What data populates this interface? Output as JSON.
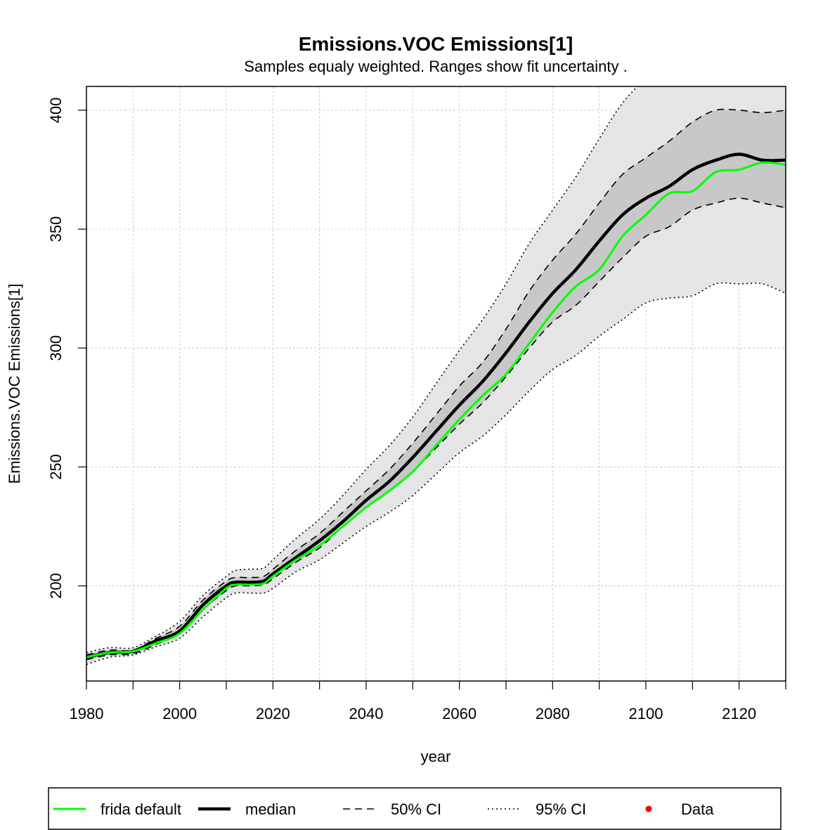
{
  "chart_data": {
    "type": "line",
    "title": "Emissions.VOC Emissions[1]",
    "subtitle": "Samples equaly weighted. Ranges show  fit uncertainty .",
    "xlabel": "year",
    "ylabel": "Emissions.VOC Emissions[1]",
    "xlim": [
      1980,
      2130
    ],
    "ylim": [
      160,
      410
    ],
    "x_ticks": [
      1980,
      2000,
      2020,
      2040,
      2060,
      2080,
      2100,
      2120
    ],
    "y_ticks": [
      200,
      250,
      300,
      350,
      400
    ],
    "grid": true,
    "legend": {
      "placement": "bottom",
      "entries": [
        "frida default",
        "median",
        "50% CI",
        "95% CI",
        "Data"
      ]
    },
    "colors": {
      "frida_default": "#00ff00",
      "median": "#000000",
      "ci50_fill": "#c8c8c8",
      "ci95_fill": "#e5e5e5",
      "data": "#ff0000"
    },
    "x": [
      1980,
      1985,
      1990,
      1995,
      2000,
      2005,
      2010,
      2012,
      2015,
      2018,
      2020,
      2025,
      2030,
      2035,
      2040,
      2045,
      2050,
      2055,
      2060,
      2065,
      2070,
      2075,
      2080,
      2085,
      2090,
      2095,
      2100,
      2105,
      2110,
      2115,
      2120,
      2125,
      2130
    ],
    "series": [
      {
        "name": "frida default",
        "values": [
          170,
          172,
          172.5,
          176,
          180,
          190,
          199,
          200.5,
          200.5,
          201,
          204,
          211,
          217,
          225,
          233,
          240,
          248,
          259,
          270,
          280,
          289,
          302,
          315,
          326,
          333,
          347,
          356,
          365,
          366,
          374,
          375,
          378,
          377
        ]
      },
      {
        "name": "median",
        "values": [
          170,
          172,
          172.5,
          177,
          181,
          192,
          200,
          201.5,
          201.5,
          202,
          205,
          212,
          219,
          227,
          236,
          244,
          254,
          265,
          276,
          286,
          298,
          311,
          323,
          333,
          345,
          356,
          363,
          368,
          375,
          379,
          381.5,
          379,
          379
        ]
      }
    ],
    "bands": {
      "ci50_lower": [
        169,
        171,
        171.5,
        175.5,
        180,
        190,
        198,
        200,
        200,
        200.5,
        203,
        210,
        216,
        225,
        233,
        240,
        248,
        258,
        268,
        277,
        288,
        300,
        311,
        318,
        328,
        338,
        347,
        351,
        358,
        361,
        363,
        361,
        359
      ],
      "ci50_upper": [
        171,
        173,
        173,
        178,
        183,
        194,
        202,
        203.5,
        203.5,
        204,
        207,
        215,
        222,
        231,
        240,
        249,
        260,
        272,
        284,
        294,
        308,
        324,
        337,
        348,
        361,
        373,
        380,
        387,
        395,
        400,
        400,
        399,
        400
      ],
      "ci95_lower": [
        167,
        170,
        171,
        174.5,
        178,
        187,
        195,
        197,
        197,
        197,
        199,
        206,
        211,
        218,
        225,
        231,
        238,
        247,
        256,
        263,
        272,
        282,
        291,
        297,
        305,
        312,
        319,
        321,
        322,
        327,
        327,
        327,
        323
      ],
      "ci95_upper": [
        172,
        174,
        174,
        179,
        185,
        196,
        204,
        206.5,
        207,
        207.5,
        211,
        220,
        228,
        238,
        249,
        259,
        271,
        285,
        299,
        312,
        327,
        344,
        358,
        372,
        388,
        403,
        413,
        418,
        418,
        415,
        413,
        411,
        411
      ]
    }
  }
}
